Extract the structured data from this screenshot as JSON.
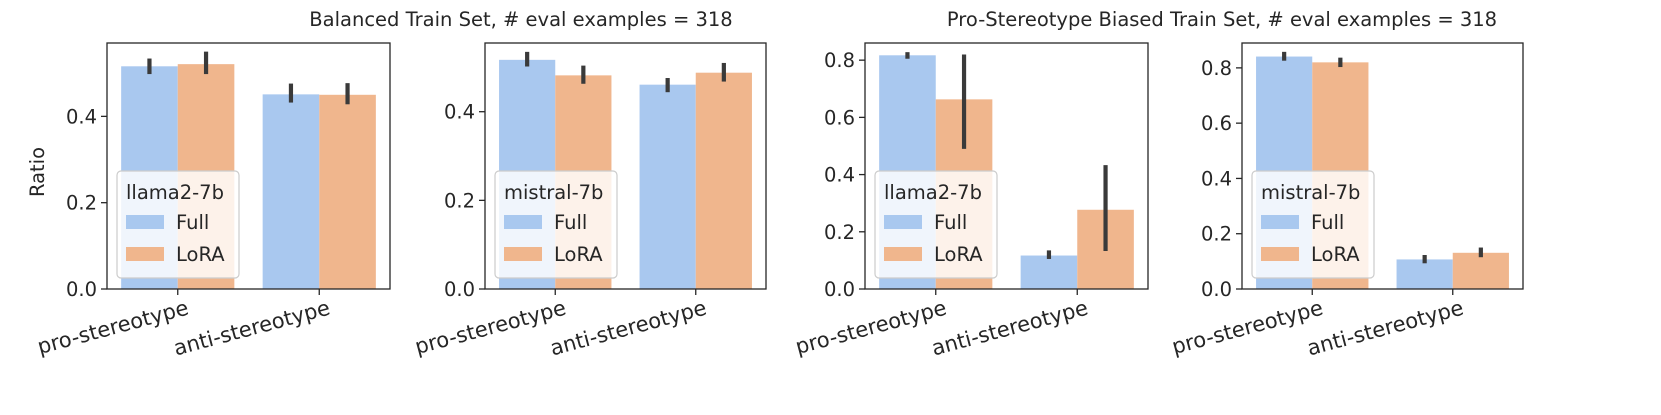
{
  "titles": {
    "left": "Balanced Train Set, # eval examples = 318",
    "right": "Pro-Stereotype Biased Train Set, # eval examples = 318"
  },
  "ylabel": "Ratio",
  "colors": {
    "full": "#a9c8ef",
    "lora": "#f0b68d",
    "errbar": "#3a3a3a"
  },
  "chart_data": [
    {
      "type": "bar",
      "group_title": "Balanced Train Set, # eval examples = 318",
      "categories": [
        "pro-stereotype",
        "anti-stereotype"
      ],
      "legend_title": "llama2-7b",
      "series": [
        {
          "name": "Full",
          "values": [
            0.516,
            0.451
          ],
          "err_low": [
            0.498,
            0.432
          ],
          "err_high": [
            0.534,
            0.476
          ]
        },
        {
          "name": "LoRA",
          "values": [
            0.521,
            0.45
          ],
          "err_low": [
            0.498,
            0.428
          ],
          "err_high": [
            0.55,
            0.477
          ]
        }
      ],
      "ylim": [
        0,
        0.57
      ],
      "yticks": [
        "0.0",
        "0.2",
        "0.4"
      ],
      "ytick_values": [
        0,
        0.2,
        0.4
      ],
      "ylabel": "Ratio",
      "legend_position": "lower-left"
    },
    {
      "type": "bar",
      "group_title": "Balanced Train Set, # eval examples = 318",
      "categories": [
        "pro-stereotype",
        "anti-stereotype"
      ],
      "legend_title": "mistral-7b",
      "series": [
        {
          "name": "Full",
          "values": [
            0.517,
            0.461
          ],
          "err_low": [
            0.502,
            0.444
          ],
          "err_high": [
            0.535,
            0.476
          ]
        },
        {
          "name": "LoRA",
          "values": [
            0.482,
            0.488
          ],
          "err_low": [
            0.463,
            0.468
          ],
          "err_high": [
            0.504,
            0.51
          ]
        }
      ],
      "ylim": [
        0,
        0.555
      ],
      "yticks": [
        "0.0",
        "0.2",
        "0.4"
      ],
      "ytick_values": [
        0,
        0.2,
        0.4
      ],
      "ylabel": "",
      "legend_position": "lower-left"
    },
    {
      "type": "bar",
      "group_title": "Pro-Stereotype Biased Train Set, # eval examples = 318",
      "categories": [
        "pro-stereotype",
        "anti-stereotype"
      ],
      "legend_title": "llama2-7b",
      "series": [
        {
          "name": "Full",
          "values": [
            0.817,
            0.117
          ],
          "err_low": [
            0.805,
            0.105
          ],
          "err_high": [
            0.828,
            0.135
          ]
        },
        {
          "name": "LoRA",
          "values": [
            0.663,
            0.277
          ],
          "err_low": [
            0.49,
            0.133
          ],
          "err_high": [
            0.82,
            0.433
          ]
        }
      ],
      "ylim": [
        0,
        0.86
      ],
      "yticks": [
        "0.0",
        "0.2",
        "0.4",
        "0.6",
        "0.8"
      ],
      "ytick_values": [
        0,
        0.2,
        0.4,
        0.6,
        0.8
      ],
      "ylabel": "",
      "legend_position": "lower-left"
    },
    {
      "type": "bar",
      "group_title": "Pro-Stereotype Biased Train Set, # eval examples = 318",
      "categories": [
        "pro-stereotype",
        "anti-stereotype"
      ],
      "legend_title": "mistral-7b",
      "series": [
        {
          "name": "Full",
          "values": [
            0.841,
            0.107
          ],
          "err_low": [
            0.826,
            0.093
          ],
          "err_high": [
            0.858,
            0.123
          ]
        },
        {
          "name": "LoRA",
          "values": [
            0.82,
            0.131
          ],
          "err_low": [
            0.803,
            0.115
          ],
          "err_high": [
            0.837,
            0.15
          ]
        }
      ],
      "ylim": [
        0,
        0.89
      ],
      "yticks": [
        "0.0",
        "0.2",
        "0.4",
        "0.6",
        "0.8"
      ],
      "ytick_values": [
        0,
        0.2,
        0.4,
        0.6,
        0.8
      ],
      "ylabel": "",
      "legend_position": "lower-left"
    }
  ]
}
